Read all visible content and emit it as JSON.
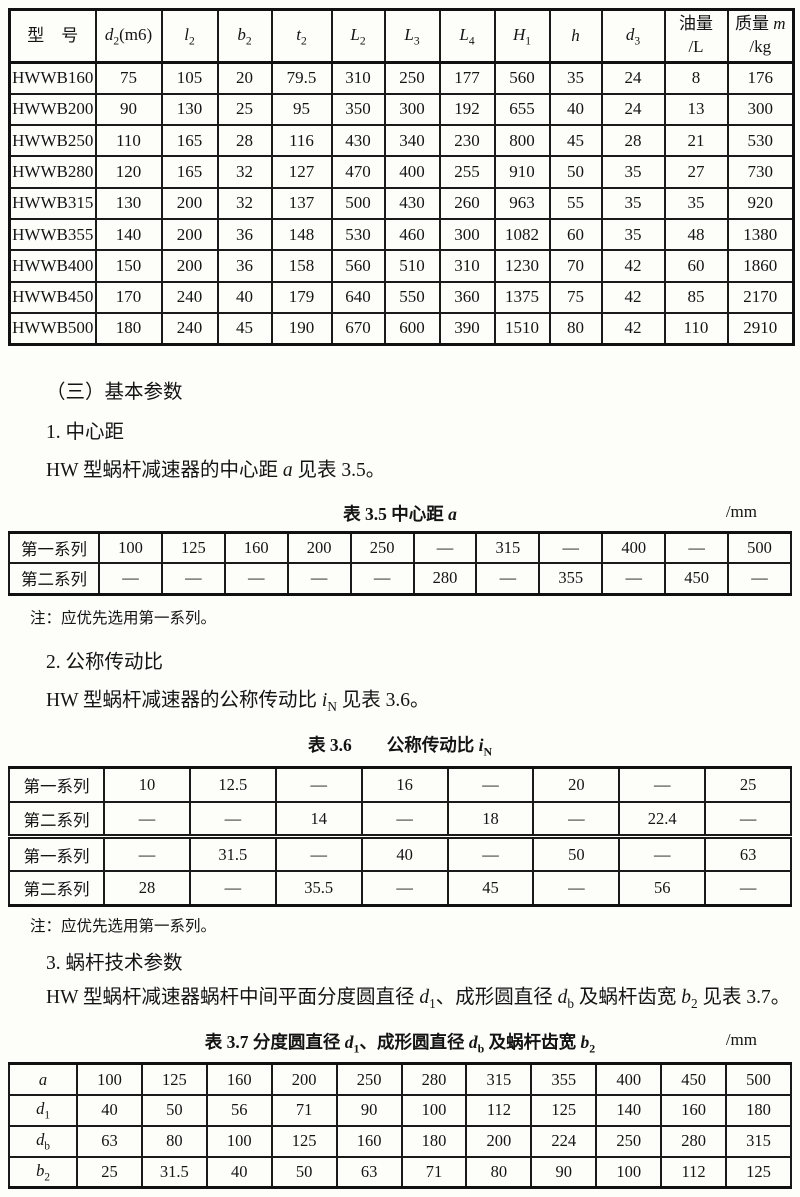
{
  "table1": {
    "head_rows": [
      [
        "型　号",
        "<i>d</i><sub>2</sub>(m6)",
        "<i>l</i><sub>2</sub>",
        "<i>b</i><sub>2</sub>",
        "<i>t</i><sub>2</sub>",
        "<i>L</i><sub>2</sub>",
        "<i>L</i><sub>3</sub>",
        "<i>L</i><sub>4</sub>",
        "<i>H</i><sub>1</sub>",
        "<i>h</i>",
        "<i>d</i><sub>3</sub>",
        "油量<br>/L",
        "质量 <i>m</i><br>/kg"
      ]
    ],
    "rows": [
      [
        "HWWB160",
        "75",
        "105",
        "20",
        "79.5",
        "310",
        "250",
        "177",
        "560",
        "35",
        "24",
        "8",
        "176"
      ],
      [
        "HWWB200",
        "90",
        "130",
        "25",
        "95",
        "350",
        "300",
        "192",
        "655",
        "40",
        "24",
        "13",
        "300"
      ],
      [
        "HWWB250",
        "110",
        "165",
        "28",
        "116",
        "430",
        "340",
        "230",
        "800",
        "45",
        "28",
        "21",
        "530"
      ],
      [
        "HWWB280",
        "120",
        "165",
        "32",
        "127",
        "470",
        "400",
        "255",
        "910",
        "50",
        "35",
        "27",
        "730"
      ],
      [
        "HWWB315",
        "130",
        "200",
        "32",
        "137",
        "500",
        "430",
        "260",
        "963",
        "55",
        "35",
        "35",
        "920"
      ],
      [
        "HWWB355",
        "140",
        "200",
        "36",
        "148",
        "530",
        "460",
        "300",
        "1082",
        "60",
        "35",
        "48",
        "1380"
      ],
      [
        "HWWB400",
        "150",
        "200",
        "36",
        "158",
        "560",
        "510",
        "310",
        "1230",
        "70",
        "42",
        "60",
        "1860"
      ],
      [
        "HWWB450",
        "170",
        "240",
        "40",
        "179",
        "640",
        "550",
        "360",
        "1375",
        "75",
        "42",
        "85",
        "2170"
      ],
      [
        "HWWB500",
        "180",
        "240",
        "45",
        "190",
        "670",
        "600",
        "390",
        "1510",
        "80",
        "42",
        "110",
        "2910"
      ]
    ]
  },
  "sections": {
    "basic_heading": "（三）基本参数",
    "item1_heading": "1. 中心距",
    "item1_para": "HW 型蜗杆减速器的中心距 <i>a</i> 见表 3.5。",
    "item2_heading": "2. 公称传动比",
    "item2_para": "HW 型蜗杆减速器的公称传动比 <i>i</i><sub>N</sub> 见表 3.6。",
    "item3_heading": "3. 蜗杆技术参数",
    "item3_para": "HW 型蜗杆减速器蜗杆中间平面分度圆直径 <i>d</i><sub>1</sub>、成形圆直径 <i>d</i><sub>b</sub> 及蜗杆齿宽 <i>b</i><sub>2</sub> 见表 3.7。"
  },
  "table35": {
    "caption": "表 3.5 中心距 <i>a</i>",
    "unit": "/mm",
    "rows": [
      [
        "第一系列",
        "100",
        "125",
        "160",
        "200",
        "250",
        "—",
        "315",
        "—",
        "400",
        "—",
        "500"
      ],
      [
        "第二系列",
        "—",
        "—",
        "—",
        "—",
        "—",
        "280",
        "—",
        "355",
        "—",
        "450",
        "—"
      ]
    ],
    "note": "注：应优先选用第一系列。"
  },
  "table36": {
    "caption": "表 3.6　　公称传动比 <i>i</i><sub>N</sub>",
    "rows": [
      [
        "第一系列",
        "10",
        "12.5",
        "—",
        "16",
        "—",
        "20",
        "—",
        "25"
      ],
      [
        "第二系列",
        "—",
        "—",
        "14",
        "—",
        "18",
        "—",
        "22.4",
        "—"
      ],
      [
        "第一系列",
        "—",
        "31.5",
        "—",
        "40",
        "—",
        "50",
        "—",
        "63"
      ],
      [
        "第二系列",
        "28",
        "—",
        "35.5",
        "—",
        "45",
        "—",
        "56",
        "—"
      ]
    ],
    "note": "注：应优先选用第一系列。"
  },
  "table37": {
    "caption": "表 3.7 分度圆直径 <i>d</i><sub>1</sub>、成形圆直径 <i>d</i><sub>b</sub> 及蜗杆齿宽 <i>b</i><sub>2</sub>",
    "unit": "/mm",
    "rows": [
      [
        "<i>a</i>",
        "100",
        "125",
        "160",
        "200",
        "250",
        "280",
        "315",
        "355",
        "400",
        "450",
        "500"
      ],
      [
        "<i>d</i><sub>1</sub>",
        "40",
        "50",
        "56",
        "71",
        "90",
        "100",
        "112",
        "125",
        "140",
        "160",
        "180"
      ],
      [
        "<i>d</i><sub>b</sub>",
        "63",
        "80",
        "100",
        "125",
        "160",
        "180",
        "200",
        "224",
        "250",
        "280",
        "315"
      ],
      [
        "<i>b</i><sub>2</sub>",
        "25",
        "31.5",
        "40",
        "50",
        "63",
        "71",
        "80",
        "90",
        "100",
        "112",
        "125"
      ]
    ]
  }
}
